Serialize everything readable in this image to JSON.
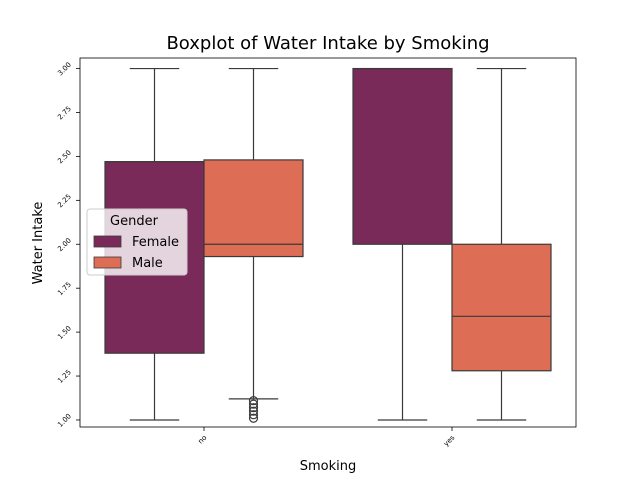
{
  "chart_data": {
    "type": "boxplot",
    "title": "Boxplot of Water Intake by Smoking",
    "xlabel": "Smoking",
    "ylabel": "Water Intake",
    "categories": [
      "no",
      "yes"
    ],
    "ylim": [
      0.96,
      3.06
    ],
    "yticks": [
      "1.00",
      "1.25",
      "1.50",
      "1.75",
      "2.00",
      "2.25",
      "2.50",
      "2.75",
      "3.00"
    ],
    "legend": {
      "title": "Gender",
      "placement": "center-left"
    },
    "series": [
      {
        "name": "Female",
        "color": "#7a2a58",
        "boxes": [
          {
            "category": "no",
            "min": 1.0,
            "q1": 1.38,
            "median": 2.47,
            "q3": 2.47,
            "max": 3.0,
            "outliers": []
          },
          {
            "category": "yes",
            "min": 1.0,
            "q1": 2.0,
            "median": 3.0,
            "q3": 3.0,
            "max": 3.0,
            "outliers": []
          }
        ]
      },
      {
        "name": "Male",
        "color": "#de6d55",
        "boxes": [
          {
            "category": "no",
            "min": 1.12,
            "q1": 1.93,
            "median": 2.0,
            "q3": 2.48,
            "max": 3.0,
            "outliers": [
              1.01,
              1.03,
              1.05,
              1.07,
              1.09,
              1.11
            ]
          },
          {
            "category": "yes",
            "min": 1.0,
            "q1": 1.28,
            "median": 1.59,
            "q3": 2.0,
            "max": 3.0,
            "outliers": []
          }
        ]
      }
    ]
  }
}
